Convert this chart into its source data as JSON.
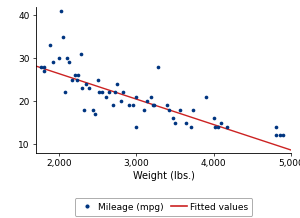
{
  "title": "",
  "xlabel": "Weight (lbs.)",
  "ylabel": "",
  "xlim": [
    1700,
    5000
  ],
  "ylim": [
    8,
    42
  ],
  "xticks": [
    2000,
    3000,
    4000,
    5000
  ],
  "yticks": [
    10,
    20,
    30,
    40
  ],
  "xtick_labels": [
    "2,000",
    "3,000",
    "4,000",
    "5,000"
  ],
  "ytick_labels": [
    "10",
    "20",
    "30",
    "40"
  ],
  "scatter_color": "#003580",
  "line_color": "#cc2222",
  "scatter_size": 7,
  "background_color": "#ffffff",
  "legend_labels": [
    "Mileage (mpg)",
    "Fitted values"
  ],
  "points": [
    [
      1760,
      28
    ],
    [
      1800,
      28
    ],
    [
      1800,
      27
    ],
    [
      1880,
      33
    ],
    [
      1925,
      29
    ],
    [
      2000,
      30
    ],
    [
      2020,
      41
    ],
    [
      2050,
      35
    ],
    [
      2075,
      22
    ],
    [
      2100,
      30
    ],
    [
      2125,
      29
    ],
    [
      2160,
      25
    ],
    [
      2200,
      26
    ],
    [
      2230,
      25
    ],
    [
      2240,
      26
    ],
    [
      2280,
      31
    ],
    [
      2300,
      23
    ],
    [
      2320,
      18
    ],
    [
      2350,
      24
    ],
    [
      2380,
      23
    ],
    [
      2440,
      18
    ],
    [
      2460,
      17
    ],
    [
      2500,
      25
    ],
    [
      2520,
      22
    ],
    [
      2560,
      22
    ],
    [
      2600,
      21
    ],
    [
      2640,
      22
    ],
    [
      2700,
      19
    ],
    [
      2720,
      22
    ],
    [
      2750,
      24
    ],
    [
      2800,
      20
    ],
    [
      2830,
      22
    ],
    [
      2900,
      19
    ],
    [
      2950,
      19
    ],
    [
      2990,
      21
    ],
    [
      3000,
      14
    ],
    [
      3100,
      18
    ],
    [
      3140,
      20
    ],
    [
      3190,
      21
    ],
    [
      3210,
      19
    ],
    [
      3230,
      19
    ],
    [
      3280,
      28
    ],
    [
      3400,
      19
    ],
    [
      3420,
      18
    ],
    [
      3470,
      16
    ],
    [
      3500,
      15
    ],
    [
      3560,
      18
    ],
    [
      3640,
      15
    ],
    [
      3700,
      14
    ],
    [
      3730,
      18
    ],
    [
      3900,
      21
    ],
    [
      4000,
      16
    ],
    [
      4010,
      14
    ],
    [
      4050,
      14
    ],
    [
      4100,
      15
    ],
    [
      4170,
      14
    ],
    [
      4800,
      12
    ],
    [
      4810,
      14
    ],
    [
      4860,
      12
    ],
    [
      4900,
      12
    ]
  ],
  "fit_x": [
    1700,
    5000
  ],
  "fit_slope": -0.00592,
  "fit_intercept": 38.2
}
